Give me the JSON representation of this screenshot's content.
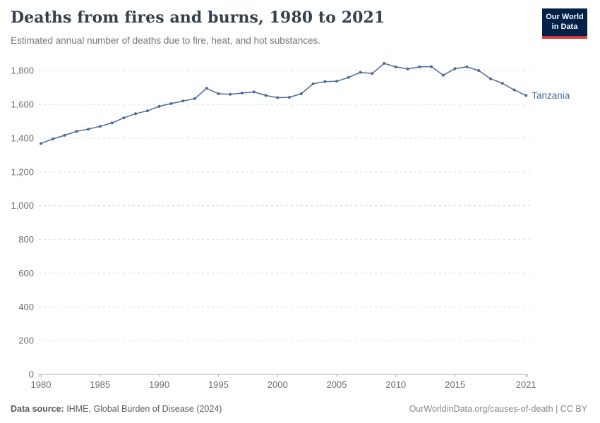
{
  "header": {
    "title": "Deaths from fires and burns, 1980 to 2021",
    "subtitle": "Estimated annual number of deaths due to fire, heat, and hot substances.",
    "logo": {
      "line1": "Our World",
      "line2": "in Data",
      "bg_color": "#002147",
      "bar_color": "#d73a36"
    }
  },
  "chart_data": {
    "type": "line",
    "title": "Deaths from fires and burns, 1980 to 2021",
    "xlabel": "",
    "ylabel": "",
    "xlim": [
      1980,
      2021
    ],
    "ylim": [
      0,
      1800
    ],
    "x_ticks": [
      1980,
      1985,
      1990,
      1995,
      2000,
      2005,
      2010,
      2015,
      2021
    ],
    "y_ticks": [
      0,
      200,
      400,
      600,
      800,
      1000,
      1200,
      1400,
      1600,
      1800
    ],
    "grid": "horizontal-dashed",
    "legend_position": "end-of-line-label",
    "series": [
      {
        "name": "Tanzania",
        "color": "#4b6a9b",
        "x": [
          1980,
          1981,
          1982,
          1983,
          1984,
          1985,
          1986,
          1987,
          1988,
          1989,
          1990,
          1991,
          1992,
          1993,
          1994,
          1995,
          1996,
          1997,
          1998,
          1999,
          2000,
          2001,
          2002,
          2003,
          2004,
          2005,
          2006,
          2007,
          2008,
          2009,
          2010,
          2011,
          2012,
          2013,
          2014,
          2015,
          2016,
          2017,
          2018,
          2019,
          2020,
          2021
        ],
        "values": [
          1368,
          1395,
          1417,
          1440,
          1453,
          1470,
          1490,
          1520,
          1545,
          1562,
          1588,
          1605,
          1620,
          1634,
          1695,
          1663,
          1660,
          1667,
          1674,
          1653,
          1640,
          1642,
          1663,
          1722,
          1735,
          1737,
          1760,
          1790,
          1783,
          1843,
          1822,
          1810,
          1822,
          1824,
          1773,
          1812,
          1822,
          1801,
          1752,
          1725,
          1686,
          1653
        ]
      }
    ],
    "colors": {
      "gridline": "#dcdcdc",
      "axis_line": "#b3b3b3",
      "tick_label": "#6e6e6e"
    }
  },
  "footer": {
    "source_label": "Data source:",
    "source_text": " IHME, Global Burden of Disease (2024)",
    "link_text": "OurWorldinData.org/causes-of-death | CC BY"
  }
}
